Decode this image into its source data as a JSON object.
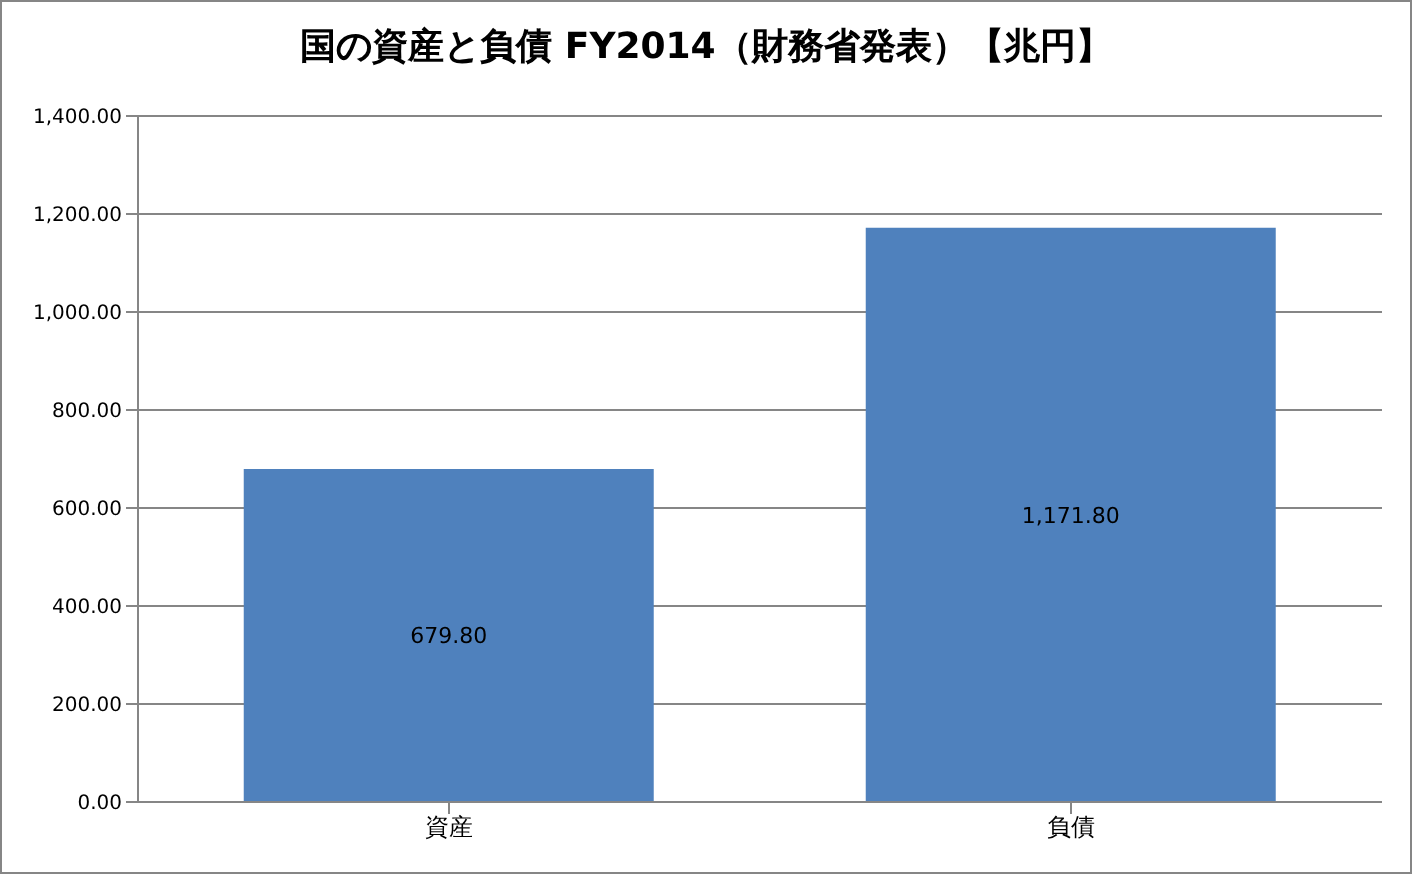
{
  "chart_data": {
    "type": "bar",
    "title": "国の資産と負債 FY2014（財務省発表）【兆円】",
    "categories": [
      "資産",
      "負債"
    ],
    "values": [
      679.8,
      1171.8
    ],
    "value_labels": [
      "679.80",
      "1,171.80"
    ],
    "color": "#4f81bd",
    "ylim": [
      0,
      1400
    ],
    "yticks": [
      {
        "value": 0,
        "label": "0.00"
      },
      {
        "value": 200,
        "label": "200.00"
      },
      {
        "value": 400,
        "label": "400.00"
      },
      {
        "value": 600,
        "label": "600.00"
      },
      {
        "value": 800,
        "label": "800.00"
      },
      {
        "value": 1000,
        "label": "1,000.00"
      },
      {
        "value": 1200,
        "label": "1,200.00"
      },
      {
        "value": 1400,
        "label": "1,400.00"
      }
    ],
    "grid": "y"
  }
}
